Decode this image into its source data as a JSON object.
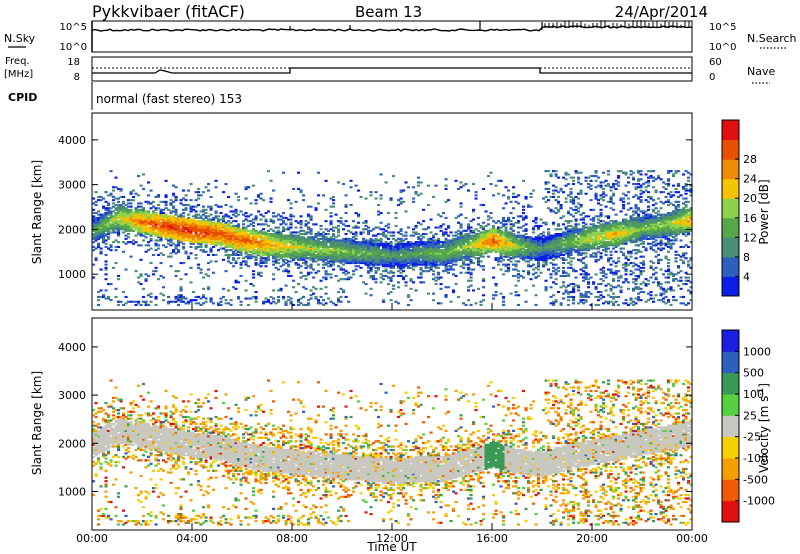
{
  "header": {
    "station": "Pykkvibaer (fitACF)",
    "beam": "Beam 13",
    "date": "24/Apr/2014"
  },
  "status_panels": {
    "nsky": {
      "label": "N.Sky",
      "right_label": "N.Search",
      "ticks_left": [
        "10^5",
        "10^0"
      ],
      "ticks_right": [
        "10^5",
        "10^0"
      ]
    },
    "freq": {
      "label_1": "Freq.",
      "label_2": "[MHz]",
      "ticks_left": [
        "18",
        "8"
      ],
      "right_label": "Nave",
      "ticks_right": [
        "60",
        "0"
      ]
    },
    "cpid": {
      "label": "CPID",
      "text": "normal (fast stereo) 153"
    }
  },
  "chart_data": [
    {
      "type": "heatmap",
      "name": "power-panel",
      "xlabel": "",
      "ylabel": "Slant Range [km]",
      "xlim": [
        0,
        24
      ],
      "ylim": [
        200,
        4600
      ],
      "y_ticks": [
        "1000",
        "2000",
        "3000",
        "4000"
      ],
      "colorbar": {
        "label": "Power [dB]",
        "ticks": [
          "4",
          "8",
          "12",
          "16",
          "20",
          "24",
          "28"
        ],
        "colors": [
          "#0a1ee6",
          "#2e5fbf",
          "#4a8d76",
          "#55a64c",
          "#8ed24c",
          "#f5c300",
          "#f08a00",
          "#e85000",
          "#e01010"
        ]
      },
      "echo_band": {
        "times": [
          0,
          1,
          2,
          3,
          4,
          5,
          6,
          7,
          8,
          9,
          10,
          11,
          12,
          13,
          14,
          15,
          16,
          17,
          18,
          19,
          20,
          21,
          22,
          23,
          24
        ],
        "center_km": [
          1950,
          2250,
          2150,
          2050,
          1950,
          1900,
          1750,
          1650,
          1600,
          1550,
          1500,
          1450,
          1400,
          1450,
          1450,
          1600,
          1750,
          1600,
          1550,
          1700,
          1800,
          1900,
          2000,
          2100,
          2200
        ],
        "peak_db": [
          14,
          20,
          26,
          29,
          30,
          28,
          27,
          24,
          20,
          18,
          17,
          15,
          13,
          14,
          16,
          18,
          27,
          18,
          12,
          16,
          20,
          22,
          16,
          18,
          24
        ]
      }
    },
    {
      "type": "heatmap",
      "name": "velocity-panel",
      "xlabel": "Time UT",
      "ylabel": "Slant Range [km]",
      "xlim": [
        0,
        24
      ],
      "ylim": [
        200,
        4600
      ],
      "x_ticks": [
        "00:00",
        "04:00",
        "08:00",
        "12:00",
        "16:00",
        "20:00",
        "00:00"
      ],
      "y_ticks": [
        "1000",
        "2000",
        "3000",
        "4000"
      ],
      "colorbar": {
        "label": "Velocity [m s",
        "label_sup": "-1",
        "label_end": "]",
        "ticks": [
          "-1000",
          "-500",
          "-100",
          "-25",
          "25",
          "100",
          "500",
          "1000"
        ],
        "colors": [
          "#e01010",
          "#f05a00",
          "#f5a000",
          "#f5d000",
          "#c8c8c0",
          "#55d040",
          "#3a9a55",
          "#2e5fbf",
          "#1a1ee0"
        ]
      }
    }
  ]
}
